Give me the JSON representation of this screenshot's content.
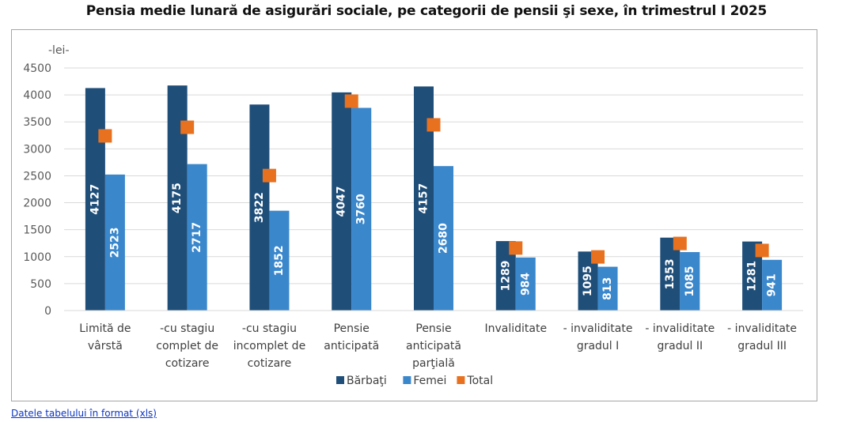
{
  "page": {
    "title": "Pensia medie lunară de asigurări sociale, pe categorii de pensii şi sexe, în trimestrul I 2025",
    "link_text": "Datele tabelului în format (xls)"
  },
  "chart_data": {
    "type": "bar",
    "title": "Pensia medie lunară de asigurări sociale, pe categorii de pensii şi sexe, în trimestrul I 2025",
    "ylabel": "-lei-",
    "xlabel": "",
    "ylim": [
      0,
      4500
    ],
    "yticks": [
      0,
      500,
      1000,
      1500,
      2000,
      2500,
      3000,
      3500,
      4000,
      4500
    ],
    "grid": true,
    "legend_position": "bottom",
    "categories": [
      [
        "Limită de",
        "vârstă"
      ],
      [
        "-cu stagiu",
        "complet de",
        "cotizare"
      ],
      [
        "-cu stagiu",
        "incomplet de",
        "cotizare"
      ],
      [
        "Pensie",
        "anticipată"
      ],
      [
        "Pensie",
        "anticipată",
        "parţială"
      ],
      [
        "Invaliditate"
      ],
      [
        "- invaliditate",
        "gradul I"
      ],
      [
        "- invaliditate",
        "gradul II"
      ],
      [
        "- invaliditate",
        "gradul III"
      ]
    ],
    "series": [
      {
        "name": "Bărbaţi",
        "type": "bar",
        "color": "#1f4e79",
        "values": [
          4127,
          4175,
          3822,
          4047,
          4157,
          1289,
          1095,
          1353,
          1281
        ],
        "data_labels": true
      },
      {
        "name": "Femei",
        "type": "bar",
        "color": "#3a87cc",
        "values": [
          2523,
          2717,
          1852,
          3760,
          2680,
          984,
          813,
          1085,
          941
        ],
        "data_labels": true
      },
      {
        "name": "Total",
        "type": "marker",
        "color": "#e8711f",
        "values": [
          3240,
          3400,
          2505,
          3885,
          3445,
          1160,
          995,
          1245,
          1115
        ],
        "data_labels": false
      }
    ]
  }
}
